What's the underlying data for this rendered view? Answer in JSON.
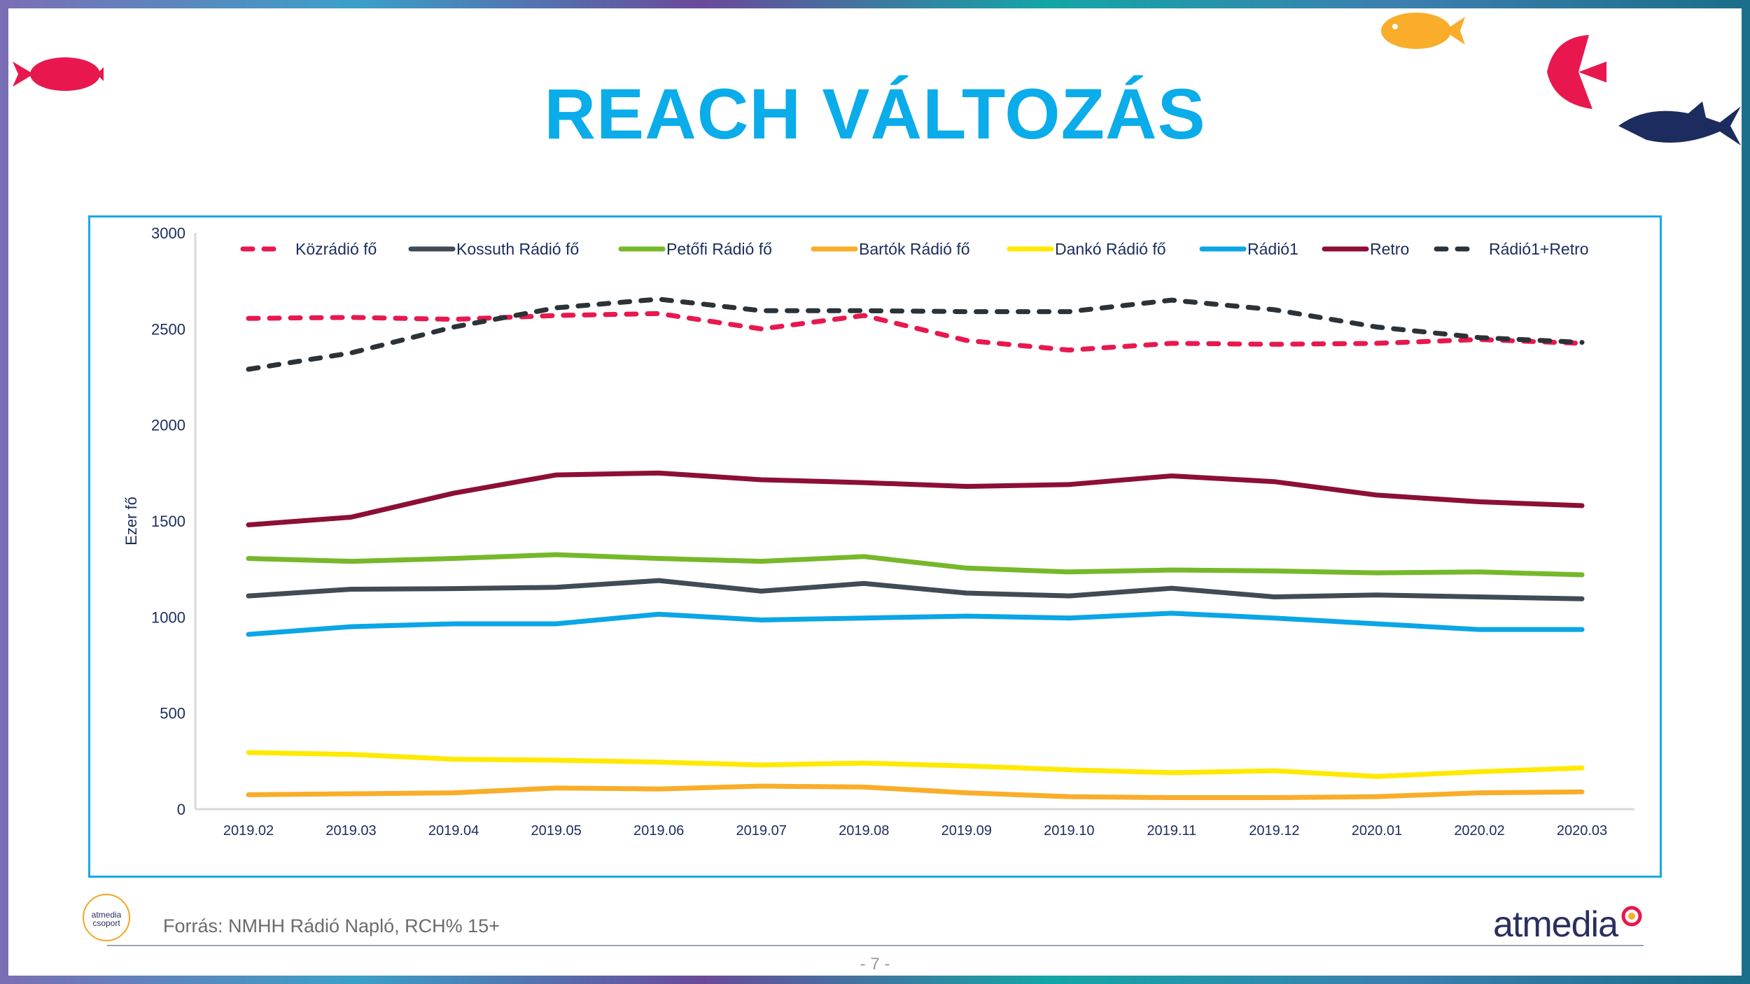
{
  "title": "REACH VÁLTOZÁS",
  "source": "Forrás: NMHH Rádió Napló, RCH% 15+",
  "page_number": "- 7 -",
  "logo_left": "atmedia csoport",
  "logo_right": "atmedia",
  "chart_data": {
    "type": "line",
    "title": "",
    "xlabel": "",
    "ylabel": "Ezer fő",
    "ylim": [
      0,
      3000
    ],
    "yticks": [
      0,
      500,
      1000,
      1500,
      2000,
      2500,
      3000
    ],
    "legend_position": "top",
    "categories": [
      "2019.02",
      "2019.03",
      "2019.04",
      "2019.05",
      "2019.06",
      "2019.07",
      "2019.08",
      "2019.09",
      "2019.10",
      "2019.11",
      "2019.12",
      "2020.01",
      "2020.02",
      "2020.03"
    ],
    "series": [
      {
        "name": "Közrádió fő",
        "color": "#e8184f",
        "dashed": true,
        "values": [
          2555,
          2560,
          2550,
          2570,
          2580,
          2500,
          2570,
          2440,
          2390,
          2425,
          2420,
          2425,
          2445,
          2425
        ]
      },
      {
        "name": "Kossuth Rádió fő",
        "color": "#414b55",
        "dashed": false,
        "values": [
          1110,
          1145,
          1148,
          1155,
          1190,
          1135,
          1175,
          1125,
          1110,
          1150,
          1105,
          1115,
          1105,
          1095
        ]
      },
      {
        "name": "Petőfi Rádió fő",
        "color": "#76b82a",
        "dashed": false,
        "values": [
          1305,
          1290,
          1305,
          1325,
          1305,
          1290,
          1315,
          1255,
          1235,
          1245,
          1240,
          1230,
          1235,
          1220
        ]
      },
      {
        "name": "Bartók Rádió fő",
        "color": "#f9ad2a",
        "dashed": false,
        "values": [
          75,
          80,
          85,
          110,
          105,
          120,
          115,
          85,
          65,
          60,
          60,
          65,
          85,
          90
        ]
      },
      {
        "name": "Dankó Rádió fő",
        "color": "#ffe900",
        "dashed": false,
        "values": [
          295,
          285,
          260,
          255,
          245,
          230,
          240,
          225,
          205,
          190,
          200,
          170,
          195,
          215
        ]
      },
      {
        "name": "Rádió1",
        "color": "#0aa6e6",
        "dashed": false,
        "values": [
          910,
          950,
          965,
          965,
          1015,
          985,
          995,
          1005,
          995,
          1020,
          995,
          965,
          935,
          935
        ]
      },
      {
        "name": "Retro",
        "color": "#8c0f35",
        "dashed": false,
        "values": [
          1480,
          1520,
          1645,
          1740,
          1750,
          1715,
          1700,
          1680,
          1690,
          1735,
          1705,
          1635,
          1600,
          1580
        ]
      },
      {
        "name": "Rádió1+Retro",
        "color": "#2b3238",
        "dashed": true,
        "values": [
          2290,
          2375,
          2510,
          2610,
          2655,
          2595,
          2595,
          2590,
          2590,
          2650,
          2600,
          2510,
          2455,
          2430
        ]
      }
    ]
  }
}
